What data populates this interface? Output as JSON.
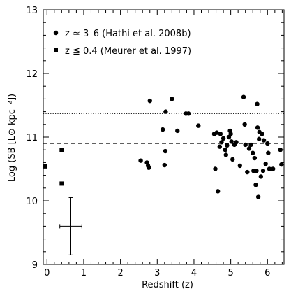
{
  "chart_data": {
    "type": "scatter",
    "title": "",
    "xlabel": "Redshift (z)",
    "ylabel": "Log (SB [L⊙ kpc⁻²])",
    "xlim": [
      -0.1,
      6.45
    ],
    "ylim": [
      9,
      13
    ],
    "x_ticks": [
      0,
      1,
      2,
      3,
      4,
      5,
      6
    ],
    "y_ticks": [
      9,
      10,
      11,
      12,
      13
    ],
    "grid": false,
    "legend_position": "top-left",
    "reference_lines": [
      {
        "style": "dotted",
        "y": 11.37
      },
      {
        "style": "dashed",
        "y": 10.9
      }
    ],
    "error_bar": {
      "x": 0.65,
      "y": 9.6,
      "x_err": 0.3,
      "y_err_low": 0.45,
      "y_err_high": 0.45
    },
    "series": [
      {
        "name": "z ≃ 3–6 (Hathi et al. 2008b)",
        "marker": "circle",
        "points": [
          [
            2.55,
            10.63
          ],
          [
            2.72,
            10.6
          ],
          [
            2.75,
            10.55
          ],
          [
            2.77,
            10.52
          ],
          [
            2.8,
            11.57
          ],
          [
            3.15,
            11.12
          ],
          [
            3.2,
            10.56
          ],
          [
            3.22,
            10.78
          ],
          [
            3.23,
            11.4
          ],
          [
            3.4,
            11.6
          ],
          [
            3.55,
            11.1
          ],
          [
            3.78,
            11.37
          ],
          [
            3.85,
            11.37
          ],
          [
            4.12,
            11.18
          ],
          [
            4.55,
            11.05
          ],
          [
            4.58,
            10.5
          ],
          [
            4.62,
            11.07
          ],
          [
            4.65,
            10.15
          ],
          [
            4.7,
            10.85
          ],
          [
            4.72,
            11.05
          ],
          [
            4.75,
            10.92
          ],
          [
            4.8,
            10.98
          ],
          [
            4.85,
            10.8
          ],
          [
            4.87,
            10.72
          ],
          [
            4.9,
            10.87
          ],
          [
            4.95,
            11.0
          ],
          [
            4.98,
            11.1
          ],
          [
            5.0,
            11.05
          ],
          [
            5.02,
            10.93
          ],
          [
            5.05,
            10.65
          ],
          [
            5.1,
            10.88
          ],
          [
            5.15,
            10.92
          ],
          [
            5.25,
            10.55
          ],
          [
            5.35,
            11.63
          ],
          [
            5.38,
            11.2
          ],
          [
            5.4,
            10.88
          ],
          [
            5.45,
            10.45
          ],
          [
            5.5,
            10.82
          ],
          [
            5.55,
            10.88
          ],
          [
            5.6,
            10.75
          ],
          [
            5.62,
            10.47
          ],
          [
            5.65,
            10.67
          ],
          [
            5.68,
            10.25
          ],
          [
            5.7,
            10.47
          ],
          [
            5.72,
            11.52
          ],
          [
            5.73,
            11.15
          ],
          [
            5.75,
            10.06
          ],
          [
            5.77,
            10.97
          ],
          [
            5.78,
            11.08
          ],
          [
            5.82,
            10.38
          ],
          [
            5.85,
            11.05
          ],
          [
            5.88,
            10.47
          ],
          [
            5.9,
            10.95
          ],
          [
            5.95,
            10.58
          ],
          [
            6.0,
            10.9
          ],
          [
            6.02,
            10.75
          ],
          [
            6.05,
            10.5
          ],
          [
            6.15,
            10.5
          ],
          [
            6.35,
            10.8
          ],
          [
            6.38,
            10.57
          ]
        ]
      },
      {
        "name": "z ≦ 0.4 (Meurer et al. 1997)",
        "marker": "square",
        "points": [
          [
            -0.05,
            10.54
          ],
          [
            0.4,
            10.8
          ],
          [
            0.4,
            10.27
          ]
        ]
      }
    ]
  }
}
